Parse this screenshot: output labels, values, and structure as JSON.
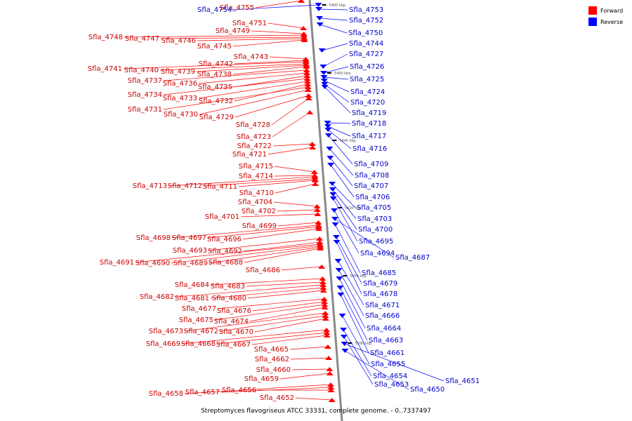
{
  "caption": "Streptomyces flavogriseus ATCC 33331, complete genome. - 0..7337497",
  "legend": [
    {
      "label": "Forward",
      "color": "#ff0000"
    },
    {
      "label": "Reverse",
      "color": "#0000ff"
    }
  ],
  "colors": {
    "forward": "#ff0000",
    "reverse": "#0000ff",
    "forward_label": "#cc0000",
    "reverse_label": "#0000cc",
    "axis": "#888888"
  },
  "scale_marks": [
    "5480 kbp",
    "5460 kbp",
    "5440 kbp",
    "5420 kbp",
    "5400 kbp",
    "5380 kbp"
  ],
  "forward_genes": [
    "Sfla_4755",
    "Sfla_4751",
    "Sfla_4749",
    "Sfla_4748",
    "Sfla_4747",
    "Sfla_4746",
    "Sfla_4745",
    "Sfla_4743",
    "Sfla_4742",
    "Sfla_4741",
    "Sfla_4740",
    "Sfla_4739",
    "Sfla_4738",
    "Sfla_4737",
    "Sfla_4736",
    "Sfla_4735",
    "Sfla_4734",
    "Sfla_4733",
    "Sfla_4732",
    "Sfla_4731",
    "Sfla_4730",
    "Sfla_4729",
    "Sfla_4728",
    "Sfla_4723",
    "Sfla_4722",
    "Sfla_4721",
    "Sfla_4715",
    "Sfla_4714",
    "Sfla_4713",
    "Sfla_4712",
    "Sfla_4711",
    "Sfla_4710",
    "Sfla_4704",
    "Sfla_4702",
    "Sfla_4701",
    "Sfla_4699",
    "Sfla_4698",
    "Sfla_4697",
    "Sfla_4696",
    "Sfla_4693",
    "Sfla_4692",
    "Sfla_4691",
    "Sfla_4690",
    "Sfla_4689",
    "Sfla_4688",
    "Sfla_4686",
    "Sfla_4684",
    "Sfla_4683",
    "Sfla_4682",
    "Sfla_4681",
    "Sfla_4680",
    "Sfla_4677",
    "Sfla_4676",
    "Sfla_4675",
    "Sfla_4674",
    "Sfla_4673",
    "Sfla_4672",
    "Sfla_4670",
    "Sfla_4669",
    "Sfla_4668",
    "Sfla_4667",
    "Sfla_4665",
    "Sfla_4662",
    "Sfla_4660",
    "Sfla_4659",
    "Sfla_4658",
    "Sfla_4657",
    "Sfla_4656",
    "Sfla_4652"
  ],
  "reverse_genes": [
    "Sfla_4754",
    "Sfla_4753",
    "Sfla_4752",
    "Sfla_4750",
    "Sfla_4744",
    "Sfla_4727",
    "Sfla_4726",
    "Sfla_4725",
    "Sfla_4724",
    "Sfla_4720",
    "Sfla_4719",
    "Sfla_4718",
    "Sfla_4717",
    "Sfla_4716",
    "Sfla_4709",
    "Sfla_4708",
    "Sfla_4707",
    "Sfla_4706",
    "Sfla_4705",
    "Sfla_4703",
    "Sfla_4700",
    "Sfla_4695",
    "Sfla_4694",
    "Sfla_4687",
    "Sfla_4685",
    "Sfla_4679",
    "Sfla_4678",
    "Sfla_4671",
    "Sfla_4666",
    "Sfla_4664",
    "Sfla_4663",
    "Sfla_4661",
    "Sfla_4655",
    "Sfla_4654",
    "Sfla_4653",
    "Sfla_4651",
    "Sfla_4650"
  ]
}
